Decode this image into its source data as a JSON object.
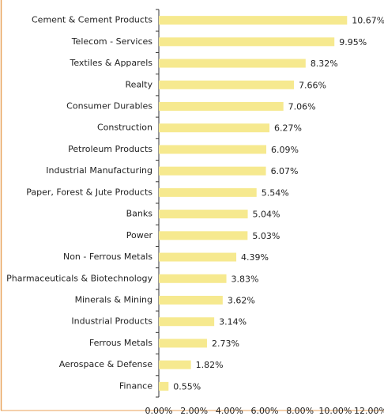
{
  "chart_data": {
    "type": "bar",
    "orientation": "horizontal",
    "categories": [
      "Cement & Cement Products",
      "Telecom - Services",
      "Textiles & Apparels",
      "Realty",
      "Consumer Durables",
      "Construction",
      "Petroleum Products",
      "Industrial Manufacturing",
      "Paper, Forest & Jute Products",
      "Banks",
      "Power",
      "Non - Ferrous Metals",
      "Pharmaceuticals & Biotechnology",
      "Minerals & Mining",
      "Industrial Products",
      "Ferrous Metals",
      "Aerospace & Defense",
      "Finance"
    ],
    "values": [
      10.67,
      9.95,
      8.32,
      7.66,
      7.06,
      6.27,
      6.09,
      6.07,
      5.54,
      5.04,
      5.03,
      4.39,
      3.83,
      3.62,
      3.14,
      2.73,
      1.82,
      0.55
    ],
    "value_labels": [
      "10.67%",
      "9.95%",
      "8.32%",
      "7.66%",
      "7.06%",
      "6.27%",
      "6.09%",
      "6.07%",
      "5.54%",
      "5.04%",
      "5.03%",
      "4.39%",
      "3.83%",
      "3.62%",
      "3.14%",
      "2.73%",
      "1.82%",
      "0.55%"
    ],
    "color": "#f6e98f",
    "xlim": [
      0,
      12
    ],
    "xticks": [
      {
        "value": 0,
        "label": "0.00%"
      },
      {
        "value": 2,
        "label": "2.00%"
      },
      {
        "value": 4,
        "label": "4.00%"
      },
      {
        "value": 6,
        "label": "6.00%"
      },
      {
        "value": 8,
        "label": "8.00%"
      },
      {
        "value": 10,
        "label": "10.00%"
      },
      {
        "value": 12,
        "label": "12.00%"
      }
    ],
    "grid": false
  }
}
